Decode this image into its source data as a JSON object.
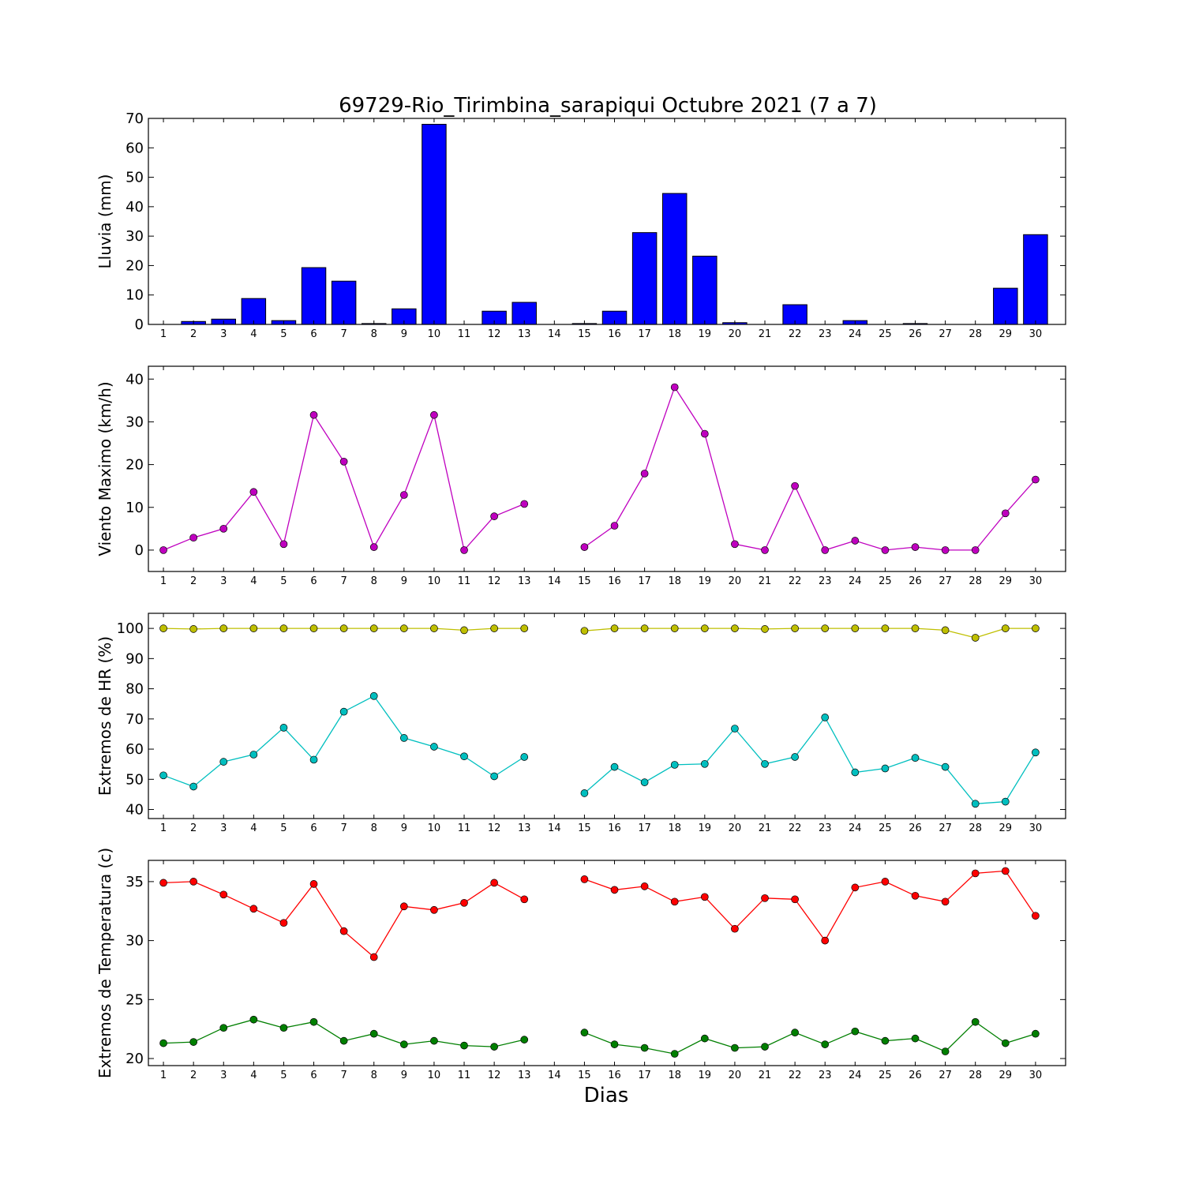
{
  "figure": {
    "title": "69729-Rio_Tirimbina_sarapiqui Octubre 2021  (7 a 7)",
    "xlabel": "Dias"
  },
  "chart_data": [
    {
      "type": "bar",
      "ylabel": "Lluvia (mm)",
      "ylim": [
        0,
        70
      ],
      "yticks": [
        0,
        10,
        20,
        30,
        40,
        50,
        60,
        70
      ],
      "categories": [
        1,
        2,
        3,
        4,
        5,
        6,
        7,
        8,
        9,
        10,
        11,
        12,
        13,
        14,
        15,
        16,
        17,
        18,
        19,
        20,
        21,
        22,
        23,
        24,
        25,
        26,
        27,
        28,
        29,
        30
      ],
      "series": [
        {
          "color": "#0000ff",
          "values": [
            0,
            1.0,
            1.8,
            8.8,
            1.3,
            19.3,
            14.7,
            0.3,
            5.3,
            68.0,
            0,
            4.5,
            7.5,
            null,
            0.3,
            4.5,
            31.2,
            44.5,
            23.2,
            0.6,
            0,
            6.7,
            0,
            1.3,
            0,
            0.3,
            0,
            0,
            12.3,
            30.5
          ]
        }
      ]
    },
    {
      "type": "line",
      "ylabel": "Viento Maximo (km/h)",
      "ylim": [
        -5,
        43
      ],
      "yticks": [
        0,
        10,
        20,
        30,
        40
      ],
      "categories": [
        1,
        2,
        3,
        4,
        5,
        6,
        7,
        8,
        9,
        10,
        11,
        12,
        13,
        14,
        15,
        16,
        17,
        18,
        19,
        20,
        21,
        22,
        23,
        24,
        25,
        26,
        27,
        28,
        29,
        30
      ],
      "series": [
        {
          "color": "#bf00bf",
          "values": [
            0,
            2.9,
            5.0,
            13.6,
            1.4,
            31.6,
            20.7,
            0.7,
            12.9,
            31.6,
            0,
            7.9,
            10.8,
            null,
            0.7,
            5.7,
            17.9,
            38.1,
            27.2,
            1.4,
            0,
            15.0,
            0,
            2.2,
            0,
            0.7,
            0,
            0,
            8.6,
            16.5
          ]
        }
      ]
    },
    {
      "type": "line",
      "ylabel": "Extremos de HR (%)",
      "ylim": [
        37,
        105
      ],
      "yticks": [
        40,
        50,
        60,
        70,
        80,
        90,
        100
      ],
      "categories": [
        1,
        2,
        3,
        4,
        5,
        6,
        7,
        8,
        9,
        10,
        11,
        12,
        13,
        14,
        15,
        16,
        17,
        18,
        19,
        20,
        21,
        22,
        23,
        24,
        25,
        26,
        27,
        28,
        29,
        30
      ],
      "series": [
        {
          "color": "#bfbf00",
          "values": [
            100,
            99.8,
            100,
            100,
            100,
            100,
            100,
            100,
            100,
            100,
            99.4,
            100,
            100,
            null,
            99.2,
            100,
            100,
            100,
            100,
            100,
            99.8,
            100,
            100,
            100,
            100,
            100,
            99.4,
            96.9,
            100,
            100
          ]
        },
        {
          "color": "#00bfbf",
          "values": [
            51.3,
            47.6,
            55.8,
            58.2,
            67.1,
            56.5,
            72.4,
            77.6,
            63.7,
            60.8,
            57.6,
            51.0,
            57.4,
            null,
            45.4,
            54.1,
            49.0,
            54.8,
            55.1,
            66.8,
            55.1,
            57.4,
            70.5,
            52.3,
            53.6,
            57.1,
            54.1,
            41.9,
            42.6,
            58.9
          ]
        }
      ]
    },
    {
      "type": "line",
      "ylabel": "Extremos de Temperatura (c)",
      "ylim": [
        19.4,
        36.8
      ],
      "yticks": [
        20,
        25,
        30,
        35
      ],
      "categories": [
        1,
        2,
        3,
        4,
        5,
        6,
        7,
        8,
        9,
        10,
        11,
        12,
        13,
        14,
        15,
        16,
        17,
        18,
        19,
        20,
        21,
        22,
        23,
        24,
        25,
        26,
        27,
        28,
        29,
        30
      ],
      "series": [
        {
          "color": "#ff0000",
          "values": [
            34.9,
            35.0,
            33.9,
            32.7,
            31.5,
            34.8,
            30.8,
            28.6,
            32.9,
            32.6,
            33.2,
            34.9,
            33.5,
            null,
            35.2,
            34.3,
            34.6,
            33.3,
            33.7,
            31.0,
            33.6,
            33.5,
            30.0,
            34.5,
            35.0,
            33.8,
            33.3,
            35.7,
            35.9,
            32.1
          ]
        },
        {
          "color": "#007f00",
          "values": [
            21.3,
            21.4,
            22.6,
            23.3,
            22.6,
            23.1,
            21.5,
            22.1,
            21.2,
            21.5,
            21.1,
            21.0,
            21.6,
            null,
            22.2,
            21.2,
            20.9,
            20.4,
            21.7,
            20.9,
            21.0,
            22.2,
            21.2,
            22.3,
            21.5,
            21.7,
            20.6,
            23.1,
            21.3,
            22.1
          ]
        }
      ]
    }
  ]
}
